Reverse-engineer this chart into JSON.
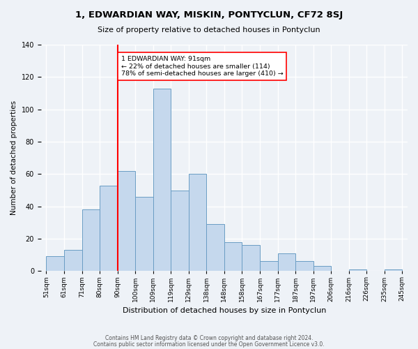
{
  "title": "1, EDWARDIAN WAY, MISKIN, PONTYCLUN, CF72 8SJ",
  "subtitle": "Size of property relative to detached houses in Pontyclun",
  "xlabel": "Distribution of detached houses by size in Pontyclun",
  "ylabel": "Number of detached properties",
  "footer_line1": "Contains HM Land Registry data © Crown copyright and database right 2024.",
  "footer_line2": "Contains public sector information licensed under the Open Government Licence v3.0.",
  "bin_labels": [
    "51sqm",
    "61sqm",
    "71sqm",
    "80sqm",
    "90sqm",
    "100sqm",
    "109sqm",
    "119sqm",
    "129sqm",
    "138sqm",
    "148sqm",
    "158sqm",
    "167sqm",
    "177sqm",
    "187sqm",
    "197sqm",
    "206sqm",
    "216sqm",
    "226sqm",
    "235sqm",
    "245sqm"
  ],
  "bar_heights": [
    9,
    13,
    38,
    53,
    62,
    46,
    113,
    50,
    60,
    29,
    18,
    16,
    6,
    11,
    6,
    3,
    0,
    1,
    0,
    1
  ],
  "bar_color": "#c5d8ed",
  "bar_edge_color": "#6a9dc4",
  "property_line_x": 4,
  "property_line_label": "1 EDWARDIAN WAY: 91sqm",
  "smaller_pct": "22%",
  "smaller_count": "114",
  "larger_pct": "78%",
  "larger_count": "410",
  "annotation_box_color": "white",
  "annotation_box_edge": "red",
  "property_line_color": "red",
  "ylim": [
    0,
    140
  ],
  "yticks": [
    0,
    20,
    40,
    60,
    80,
    100,
    120,
    140
  ],
  "background_color": "#eef2f7",
  "grid_color": "white"
}
